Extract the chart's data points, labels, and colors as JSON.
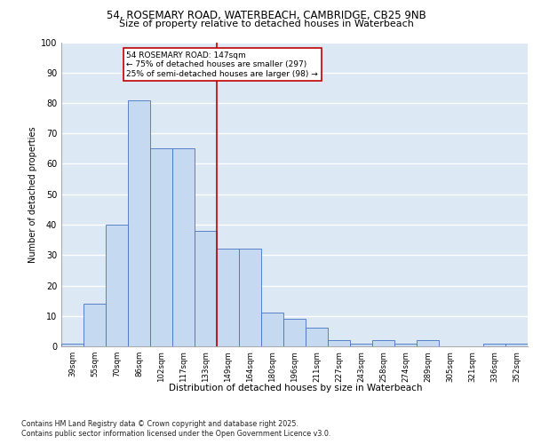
{
  "title_line1": "54, ROSEMARY ROAD, WATERBEACH, CAMBRIDGE, CB25 9NB",
  "title_line2": "Size of property relative to detached houses in Waterbeach",
  "xlabel": "Distribution of detached houses by size in Waterbeach",
  "ylabel": "Number of detached properties",
  "categories": [
    "39sqm",
    "55sqm",
    "70sqm",
    "86sqm",
    "102sqm",
    "117sqm",
    "133sqm",
    "149sqm",
    "164sqm",
    "180sqm",
    "196sqm",
    "211sqm",
    "227sqm",
    "243sqm",
    "258sqm",
    "274sqm",
    "289sqm",
    "305sqm",
    "321sqm",
    "336sqm",
    "352sqm"
  ],
  "values": [
    1,
    14,
    40,
    81,
    65,
    65,
    38,
    32,
    32,
    11,
    9,
    6,
    2,
    1,
    2,
    1,
    2,
    0,
    0,
    1,
    1
  ],
  "bar_color": "#c5d9f1",
  "bar_edge_color": "#4472c4",
  "reference_line_color": "#c00000",
  "annotation_line1": "54 ROSEMARY ROAD: 147sqm",
  "annotation_line2": "← 75% of detached houses are smaller (297)",
  "annotation_line3": "25% of semi-detached houses are larger (98) →",
  "annotation_box_color": "#c00000",
  "bg_color": "#dde8f5",
  "ylim": [
    0,
    100
  ],
  "yticks": [
    0,
    10,
    20,
    30,
    40,
    50,
    60,
    70,
    80,
    90,
    100
  ],
  "footnote_line1": "Contains HM Land Registry data © Crown copyright and database right 2025.",
  "footnote_line2": "Contains public sector information licensed under the Open Government Licence v3.0."
}
